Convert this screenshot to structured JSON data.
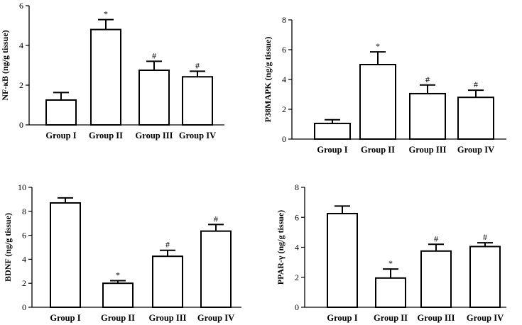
{
  "chart_data": [
    {
      "type": "bar",
      "id": "nfkb",
      "categories": [
        "Group I",
        "Group II",
        "Group III",
        "Group IV"
      ],
      "values": [
        1.25,
        4.8,
        2.75,
        2.42
      ],
      "errors": [
        0.38,
        0.5,
        0.45,
        0.28
      ],
      "significance": [
        "",
        "*",
        "#",
        "#"
      ],
      "ylabel": "NF-κB (ng/g tissue)",
      "ylim": [
        0,
        6
      ],
      "yticks": [
        0,
        2,
        4,
        6
      ]
    },
    {
      "type": "bar",
      "id": "p38mapk",
      "categories": [
        "Group I",
        "Group II",
        "Group III",
        "Group IV"
      ],
      "values": [
        1.05,
        5.0,
        3.05,
        2.8
      ],
      "errors": [
        0.25,
        0.85,
        0.58,
        0.48
      ],
      "significance": [
        "",
        "*",
        "#",
        "#"
      ],
      "ylabel": "P38MAPK (ng/g tissue)",
      "ylim": [
        0,
        8
      ],
      "yticks": [
        0,
        2,
        4,
        6,
        8
      ]
    },
    {
      "type": "bar",
      "id": "bdnf",
      "categories": [
        "Group I",
        "Group II",
        "Group III",
        "Group IV"
      ],
      "values": [
        8.7,
        2.0,
        4.25,
        6.35
      ],
      "errors": [
        0.42,
        0.22,
        0.5,
        0.55
      ],
      "significance": [
        "",
        "*",
        "#",
        "#"
      ],
      "ylabel": "BDNF (ng/g tissue)",
      "ylim": [
        0,
        10
      ],
      "yticks": [
        0,
        2,
        4,
        6,
        8,
        10
      ]
    },
    {
      "type": "bar",
      "id": "pparg",
      "categories": [
        "Group I",
        "Group II",
        "Group III",
        "Group IV"
      ],
      "values": [
        6.25,
        1.95,
        3.75,
        4.05
      ],
      "errors": [
        0.5,
        0.6,
        0.45,
        0.25
      ],
      "significance": [
        "",
        "*",
        "#",
        "#"
      ],
      "ylabel": "PPAR-γ (ng/g tissue)",
      "ylim": [
        0,
        8
      ],
      "yticks": [
        0,
        2,
        4,
        6,
        8
      ]
    }
  ]
}
